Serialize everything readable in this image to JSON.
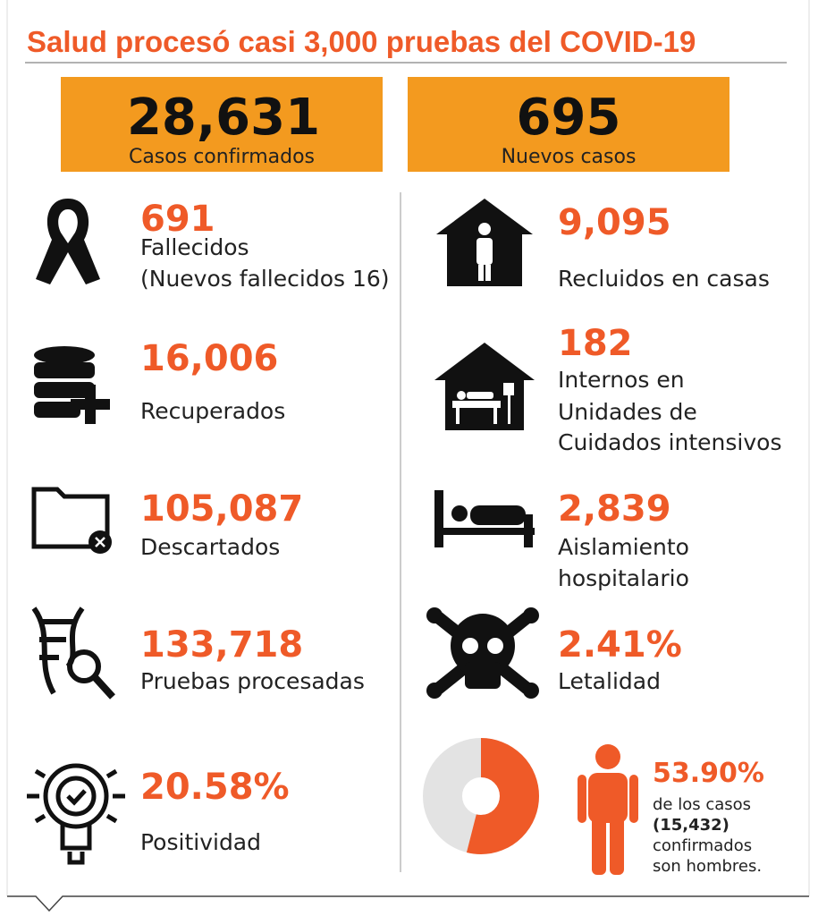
{
  "title": "Salud procesó casi 3,000 pruebas del COVID-19",
  "headline": [
    {
      "value": "28,631",
      "label": "Casos confirmados"
    },
    {
      "value": "695",
      "label": "Nuevos casos"
    }
  ],
  "left": [
    {
      "value": "691",
      "lines": [
        "Fallecidos",
        "(Nuevos fallecidos 16)"
      ]
    },
    {
      "value": "16,006",
      "lines": [
        "Recuperados"
      ]
    },
    {
      "value": "105,087",
      "lines": [
        "Descartados"
      ]
    },
    {
      "value": "133,718",
      "lines": [
        "Pruebas procesadas"
      ]
    },
    {
      "value": "20.58%",
      "lines": [
        "Positividad"
      ]
    }
  ],
  "right": [
    {
      "value": "9,095",
      "lines": [
        "Recluidos en casas"
      ]
    },
    {
      "value": "182",
      "lines": [
        "Internos en",
        "Unidades de",
        "Cuidados intensivos"
      ]
    },
    {
      "value": "2,839",
      "lines": [
        "Aislamiento",
        "hospitalario"
      ]
    },
    {
      "value": "2.41%",
      "lines": [
        "Letalidad"
      ]
    }
  ],
  "men_share": {
    "value": 53.9,
    "value_label": "53.90%",
    "lines": [
      "de los casos",
      "(15,432)",
      "confirmados",
      "son hombres."
    ]
  }
}
